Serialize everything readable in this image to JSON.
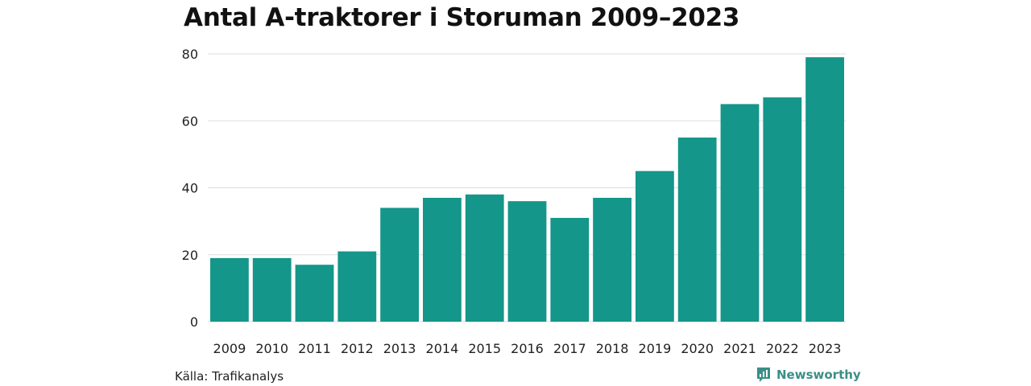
{
  "chart_data": {
    "type": "bar",
    "title": "Antal A-traktorer i Storuman 2009–2023",
    "categories": [
      "2009",
      "2010",
      "2011",
      "2012",
      "2013",
      "2014",
      "2015",
      "2016",
      "2017",
      "2018",
      "2019",
      "2020",
      "2021",
      "2022",
      "2023"
    ],
    "values": [
      19,
      19,
      17,
      21,
      34,
      37,
      38,
      36,
      31,
      37,
      45,
      55,
      65,
      67,
      79
    ],
    "ylim": [
      0,
      80
    ],
    "yticks": [
      0,
      20,
      40,
      60,
      80
    ],
    "xlabel": "",
    "ylabel": "",
    "grid": true,
    "bar_color": "#14968a"
  },
  "footer": {
    "source": "Källa: Trafikanalys",
    "brand": "Newsworthy"
  },
  "colors": {
    "bar": "#14968a",
    "brand": "#3a8f86",
    "grid": "#dddddd"
  }
}
